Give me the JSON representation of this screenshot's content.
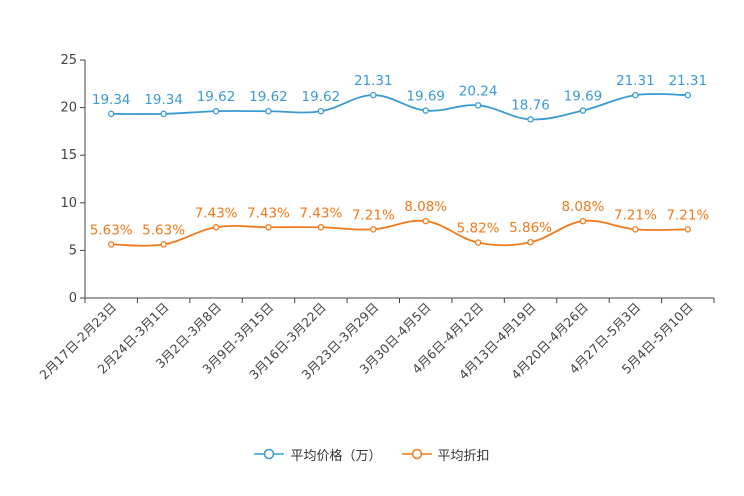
{
  "chart_data": {
    "type": "line",
    "categories": [
      "2月17日-2月23日",
      "2月24日-3月1日",
      "3月2日-3月8日",
      "3月9日-3月15日",
      "3月16日-3月22日",
      "3月23日-3月29日",
      "3月30日-4月5日",
      "4月6日-4月12日",
      "4月13日-4月19日",
      "4月20日-4月26日",
      "4月27日-5月3日",
      "5月4日-5月10日"
    ],
    "series": [
      {
        "name": "平均价格（万）",
        "color": "#3a9bd1",
        "values": [
          19.34,
          19.34,
          19.62,
          19.62,
          19.62,
          21.31,
          19.69,
          20.24,
          18.76,
          19.69,
          21.31,
          21.31
        ],
        "labels": [
          "19.34",
          "19.34",
          "19.62",
          "19.62",
          "19.62",
          "21.31",
          "19.69",
          "20.24",
          "18.76",
          "19.69",
          "21.31",
          "21.31"
        ]
      },
      {
        "name": "平均折扣",
        "color": "#f07a1c",
        "values": [
          5.63,
          5.63,
          7.43,
          7.43,
          7.43,
          7.21,
          8.08,
          5.82,
          5.86,
          8.08,
          7.21,
          7.21
        ],
        "labels": [
          "5.63%",
          "5.63%",
          "7.43%",
          "7.43%",
          "7.43%",
          "7.21%",
          "8.08%",
          "5.82%",
          "5.86%",
          "8.08%",
          "7.21%",
          "7.21%"
        ]
      }
    ],
    "yticks": [
      "0",
      "5",
      "10",
      "15",
      "20",
      "25"
    ],
    "ylim": [
      0,
      25
    ],
    "legend_position": "bottom-center"
  }
}
